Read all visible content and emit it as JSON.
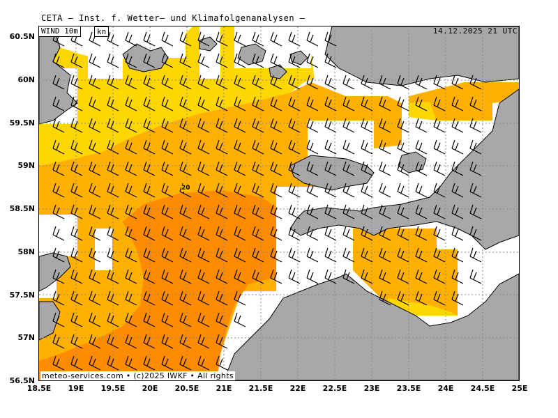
{
  "header": {
    "title": "CETA – Inst. f. Wetter– und Klimafolgenanalysen –"
  },
  "map": {
    "variable_label": "WIND 10m",
    "unit_label": "kn",
    "datetime": "14.12.2025 21 UTC",
    "credit": "meteo-services.com • (c)2025 IWKF • All rights",
    "contour_label": "20",
    "lat_labels": [
      "60.5N",
      "60N",
      "59.5N",
      "59N",
      "58.5N",
      "58N",
      "57.5N",
      "57N",
      "56.5N"
    ],
    "lon_labels": [
      "18.5E",
      "19E",
      "19.5E",
      "20E",
      "20.5E",
      "21E",
      "21.5E",
      "22E",
      "22.5E",
      "23E",
      "23.5E",
      "24E",
      "24.5E",
      "25E"
    ],
    "colors": {
      "land": "#a8a8a8",
      "calm": "#ffffff",
      "yellow": "#ffd700",
      "light_orange": "#ffc000",
      "orange": "#ffb000",
      "dark_orange": "#ff8c00"
    }
  }
}
